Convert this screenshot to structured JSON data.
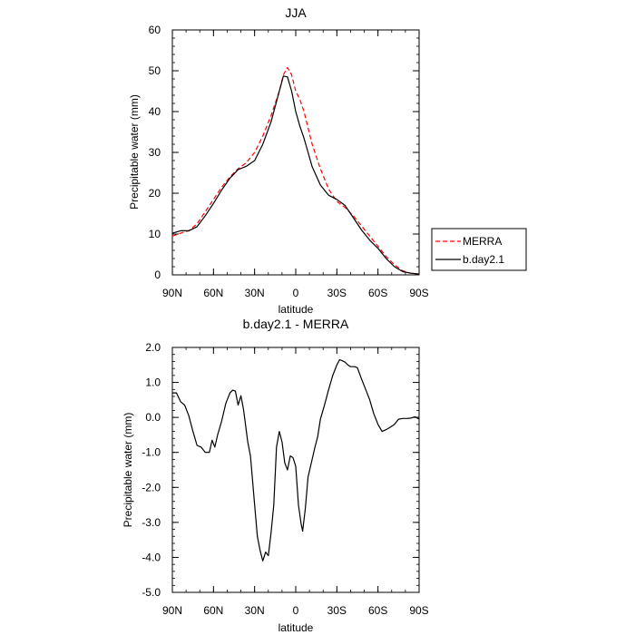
{
  "chart_data": [
    {
      "type": "line",
      "title": "JJA",
      "xlabel": "latitude",
      "ylabel": "Precipitable water (mm)",
      "x_tick_labels": [
        "90N",
        "60N",
        "30N",
        "0",
        "30S",
        "60S",
        "90S"
      ],
      "x_tick_values": [
        90,
        60,
        30,
        0,
        -30,
        -60,
        -90
      ],
      "xlim": [
        90,
        -90
      ],
      "y_tick_labels": [
        "0",
        "10",
        "20",
        "30",
        "40",
        "50",
        "60"
      ],
      "y_tick_values": [
        0,
        10,
        20,
        30,
        40,
        50,
        60
      ],
      "ylim": [
        0,
        60
      ],
      "legend": {
        "placement": "right"
      },
      "series": [
        {
          "name": "MERRA",
          "color": "#ff0000",
          "dash": "dashed",
          "points": [
            [
              90,
              9.5
            ],
            [
              84,
              10.2
            ],
            [
              78,
              10.8
            ],
            [
              72,
              12.5
            ],
            [
              66,
              15.5
            ],
            [
              60,
              18.5
            ],
            [
              54,
              21.5
            ],
            [
              48,
              24
            ],
            [
              42,
              26
            ],
            [
              36,
              27.5
            ],
            [
              30,
              30
            ],
            [
              24,
              34
            ],
            [
              18,
              39
            ],
            [
              12,
              45
            ],
            [
              9,
              49
            ],
            [
              6,
              50.8
            ],
            [
              3,
              49
            ],
            [
              0,
              45
            ],
            [
              -3,
              43
            ],
            [
              -6,
              40
            ],
            [
              -9,
              36
            ],
            [
              -12,
              32
            ],
            [
              -18,
              26
            ],
            [
              -24,
              21
            ],
            [
              -30,
              18
            ],
            [
              -36,
              16.5
            ],
            [
              -42,
              14.5
            ],
            [
              -48,
              12
            ],
            [
              -54,
              9.5
            ],
            [
              -60,
              7
            ],
            [
              -66,
              4.5
            ],
            [
              -72,
              2.5
            ],
            [
              -78,
              1
            ],
            [
              -84,
              0.4
            ],
            [
              -90,
              0.2
            ]
          ]
        },
        {
          "name": "b.day2.1",
          "color": "#000000",
          "dash": "solid",
          "points": [
            [
              90,
              10.2
            ],
            [
              84,
              10.8
            ],
            [
              78,
              10.8
            ],
            [
              72,
              11.8
            ],
            [
              66,
              14.5
            ],
            [
              60,
              17.5
            ],
            [
              54,
              20.8
            ],
            [
              48,
              23.7
            ],
            [
              42,
              25.8
            ],
            [
              36,
              26.6
            ],
            [
              30,
              28
            ],
            [
              24,
              32
            ],
            [
              18,
              37.5
            ],
            [
              12,
              45
            ],
            [
              9,
              48.7
            ],
            [
              6,
              48.5
            ],
            [
              3,
              45
            ],
            [
              0,
              40
            ],
            [
              -3,
              36.5
            ],
            [
              -6,
              33.5
            ],
            [
              -9,
              30
            ],
            [
              -12,
              26.5
            ],
            [
              -18,
              22
            ],
            [
              -24,
              19.5
            ],
            [
              -30,
              18.5
            ],
            [
              -36,
              17
            ],
            [
              -42,
              14
            ],
            [
              -48,
              11
            ],
            [
              -54,
              8.5
            ],
            [
              -60,
              6.5
            ],
            [
              -66,
              4
            ],
            [
              -72,
              2
            ],
            [
              -78,
              0.8
            ],
            [
              -84,
              0.4
            ],
            [
              -90,
              0.2
            ]
          ]
        }
      ]
    },
    {
      "type": "line",
      "title": "b.day2.1 - MERRA",
      "xlabel": "latitude",
      "ylabel": "Precipitable water (mm)",
      "x_tick_labels": [
        "90N",
        "60N",
        "30N",
        "0",
        "30S",
        "60S",
        "90S"
      ],
      "x_tick_values": [
        90,
        60,
        30,
        0,
        -30,
        -60,
        -90
      ],
      "xlim": [
        90,
        -90
      ],
      "y_tick_labels": [
        "-5.0",
        "-4.0",
        "-3.0",
        "-2.0",
        "-1.0",
        "0.0",
        "1.0",
        "2.0"
      ],
      "y_tick_values": [
        -5,
        -4,
        -3,
        -2,
        -1,
        0,
        1,
        2
      ],
      "ylim": [
        -5,
        2
      ],
      "series": [
        {
          "color": "#000000",
          "dash": "solid",
          "points": [
            [
              90,
              0.7
            ],
            [
              87,
              0.7
            ],
            [
              84,
              0.45
            ],
            [
              81,
              0.35
            ],
            [
              78,
              0.05
            ],
            [
              75,
              -0.4
            ],
            [
              72,
              -0.8
            ],
            [
              69,
              -0.85
            ],
            [
              66,
              -1.0
            ],
            [
              63,
              -1.0
            ],
            [
              61,
              -0.65
            ],
            [
              59,
              -0.85
            ],
            [
              57,
              -0.5
            ],
            [
              54,
              -0.1
            ],
            [
              51,
              0.4
            ],
            [
              48,
              0.7
            ],
            [
              46,
              0.78
            ],
            [
              44,
              0.75
            ],
            [
              42,
              0.35
            ],
            [
              40,
              0.62
            ],
            [
              38,
              0.2
            ],
            [
              35,
              -0.7
            ],
            [
              33,
              -1.1
            ],
            [
              30,
              -2.5
            ],
            [
              28,
              -3.4
            ],
            [
              26,
              -3.8
            ],
            [
              24,
              -4.1
            ],
            [
              22,
              -3.85
            ],
            [
              20,
              -3.95
            ],
            [
              18,
              -3.3
            ],
            [
              16,
              -2.5
            ],
            [
              14,
              -0.85
            ],
            [
              12,
              -0.4
            ],
            [
              10,
              -0.7
            ],
            [
              8,
              -1.3
            ],
            [
              6,
              -1.5
            ],
            [
              4,
              -1.1
            ],
            [
              2,
              -1.15
            ],
            [
              0,
              -1.4
            ],
            [
              -2,
              -2.5
            ],
            [
              -4,
              -3.05
            ],
            [
              -5,
              -3.25
            ],
            [
              -7,
              -2.6
            ],
            [
              -9,
              -1.7
            ],
            [
              -12,
              -1.2
            ],
            [
              -14,
              -0.85
            ],
            [
              -16,
              -0.55
            ],
            [
              -18,
              -0.05
            ],
            [
              -21,
              0.35
            ],
            [
              -24,
              0.8
            ],
            [
              -27,
              1.2
            ],
            [
              -30,
              1.5
            ],
            [
              -32,
              1.65
            ],
            [
              -34,
              1.62
            ],
            [
              -36,
              1.58
            ],
            [
              -38,
              1.5
            ],
            [
              -40,
              1.45
            ],
            [
              -43,
              1.45
            ],
            [
              -45,
              1.42
            ],
            [
              -48,
              1.1
            ],
            [
              -51,
              0.8
            ],
            [
              -54,
              0.5
            ],
            [
              -57,
              0.1
            ],
            [
              -60,
              -0.2
            ],
            [
              -63,
              -0.4
            ],
            [
              -66,
              -0.35
            ],
            [
              -69,
              -0.28
            ],
            [
              -72,
              -0.2
            ],
            [
              -75,
              -0.05
            ],
            [
              -78,
              -0.03
            ],
            [
              -81,
              -0.03
            ],
            [
              -84,
              -0.02
            ],
            [
              -87,
              0.02
            ],
            [
              -90,
              -0.05
            ]
          ]
        }
      ]
    }
  ]
}
